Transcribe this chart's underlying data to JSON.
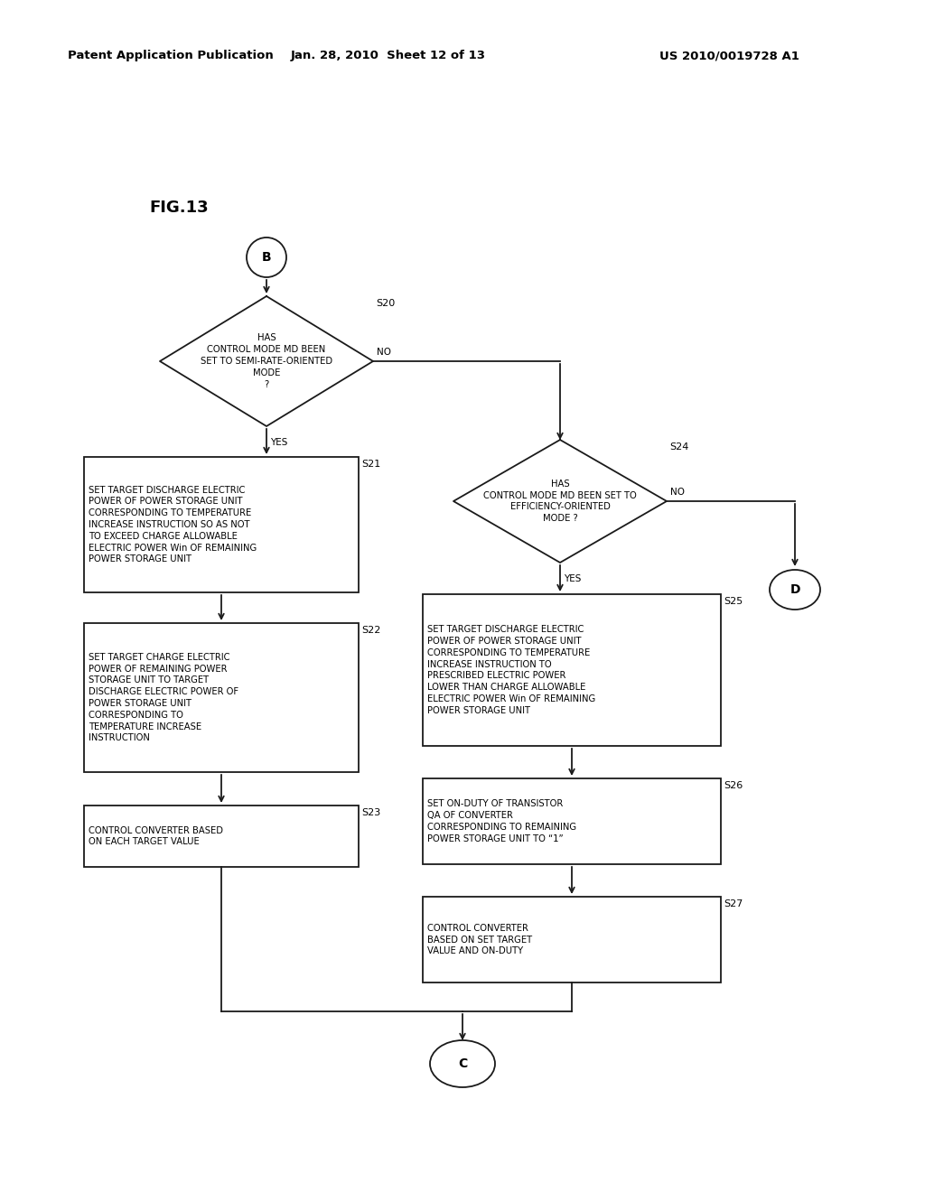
{
  "header_left": "Patent Application Publication",
  "header_mid": "Jan. 28, 2010  Sheet 12 of 13",
  "header_right": "US 2010/0019728 A1",
  "fig_label": "FIG.13",
  "bg_color": "#ffffff",
  "line_color": "#1a1a1a",
  "text_color": "#000000"
}
